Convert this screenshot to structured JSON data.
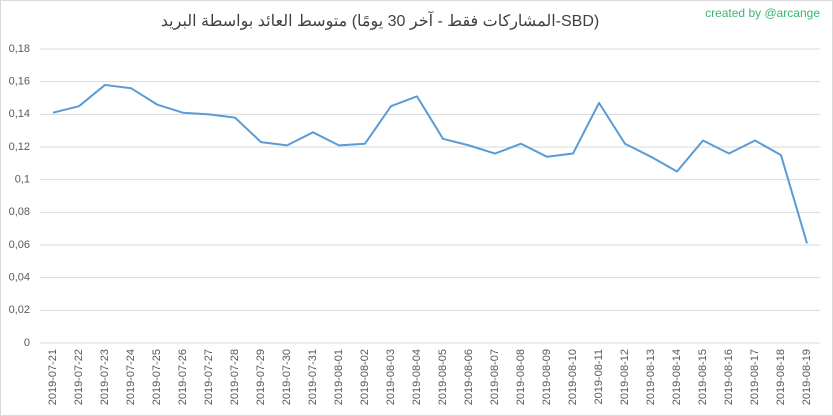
{
  "chart_data": {
    "type": "line",
    "title": "متوسط العائد بواسطة البريد (المشاركات فقط - آخر 30 يومًا-SBD)",
    "annotation": "created by @arcange",
    "categories": [
      "2019-07-21",
      "2019-07-22",
      "2019-07-23",
      "2019-07-24",
      "2019-07-25",
      "2019-07-26",
      "2019-07-27",
      "2019-07-28",
      "2019-07-29",
      "2019-07-30",
      "2019-07-31",
      "2019-08-01",
      "2019-08-02",
      "2019-08-03",
      "2019-08-04",
      "2019-08-05",
      "2019-08-06",
      "2019-08-07",
      "2019-08-08",
      "2019-08-09",
      "2019-08-10",
      "2019-08-11",
      "2019-08-12",
      "2019-08-13",
      "2019-08-14",
      "2019-08-15",
      "2019-08-16",
      "2019-08-17",
      "2019-08-18",
      "2019-08-19"
    ],
    "values": [
      0.141,
      0.145,
      0.158,
      0.156,
      0.146,
      0.141,
      0.14,
      0.138,
      0.123,
      0.121,
      0.129,
      0.121,
      0.122,
      0.145,
      0.151,
      0.125,
      0.121,
      0.116,
      0.122,
      0.114,
      0.116,
      0.147,
      0.122,
      0.114,
      0.105,
      0.124,
      0.116,
      0.124,
      0.115,
      0.061
    ],
    "color": "#5b9bd5",
    "ylim": [
      0,
      0.18
    ],
    "yticks": [
      0,
      {
        "value": 0.02,
        "label": "0,02"
      },
      {
        "value": 0.04,
        "label": "0,04"
      },
      {
        "value": 0.06,
        "label": "0,06"
      },
      {
        "value": 0.08,
        "label": "0,08"
      },
      {
        "value": 0.1,
        "label": "0,1"
      },
      {
        "value": 0.12,
        "label": "0,12"
      },
      {
        "value": 0.14,
        "label": "0,14"
      },
      {
        "value": 0.16,
        "label": "0,16"
      },
      {
        "value": 0.18,
        "label": "0,18"
      }
    ],
    "grid": true
  }
}
